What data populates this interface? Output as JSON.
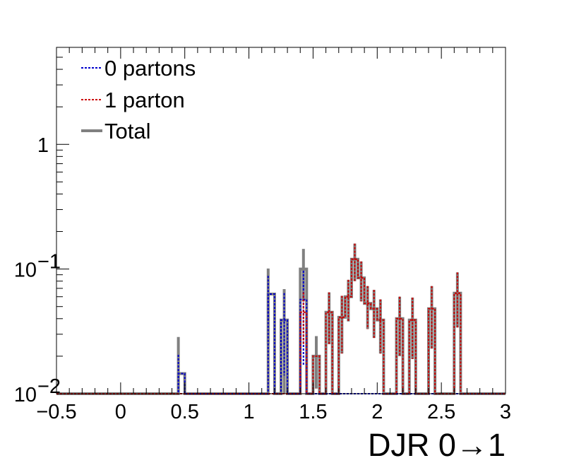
{
  "chart_data": {
    "type": "line",
    "title": "",
    "xlabel": "DJR 0→1",
    "ylabel": "",
    "x_range": [
      -0.5,
      3
    ],
    "y_scale": "log",
    "y_range": [
      0.01,
      6
    ],
    "bin_width": 0.05,
    "x_ticks": [
      "−0.5",
      "0",
      "0.5",
      "1",
      "1.5",
      "2",
      "2.5",
      "3"
    ],
    "x_tick_values": [
      -0.5,
      0,
      0.5,
      1,
      1.5,
      2,
      2.5,
      3
    ],
    "y_ticks": [
      {
        "value": 0.01,
        "base": "10",
        "exp": "−2"
      },
      {
        "value": 0.1,
        "base": "10",
        "exp": "−1"
      },
      {
        "value": 1,
        "base": "1",
        "exp": ""
      }
    ],
    "legend_position": "top-left",
    "series": [
      {
        "name": "0 partons",
        "color": "#0000cc",
        "style": "dotted",
        "bins": [
          {
            "x": 0.45,
            "y": 0.0145,
            "err": 0.006
          },
          {
            "x": 1.15,
            "y": 0.063,
            "err": 0.025
          },
          {
            "x": 1.275,
            "y": 0.039,
            "err": 0.025
          },
          {
            "x": 1.425,
            "y": 0.057,
            "err": 0.04
          }
        ]
      },
      {
        "name": "1 parton",
        "color": "#cc0000",
        "style": "dotted",
        "bins": [
          {
            "x": 1.425,
            "y": 0.045,
            "err": 0.02
          },
          {
            "x": 1.525,
            "y": 0.02,
            "err": 0.0
          },
          {
            "x": 1.625,
            "y": 0.045,
            "err": 0.02
          },
          {
            "x": 1.725,
            "y": 0.041,
            "err": 0.02
          },
          {
            "x": 1.775,
            "y": 0.06,
            "err": 0.022
          },
          {
            "x": 1.825,
            "y": 0.12,
            "err": 0.04
          },
          {
            "x": 1.875,
            "y": 0.085,
            "err": 0.03
          },
          {
            "x": 1.925,
            "y": 0.053,
            "err": 0.02
          },
          {
            "x": 1.975,
            "y": 0.048,
            "err": 0.02
          },
          {
            "x": 2.025,
            "y": 0.039,
            "err": 0.018
          },
          {
            "x": 2.175,
            "y": 0.04,
            "err": 0.02
          },
          {
            "x": 2.275,
            "y": 0.039,
            "err": 0.02
          },
          {
            "x": 2.425,
            "y": 0.048,
            "err": 0.025
          },
          {
            "x": 2.625,
            "y": 0.064,
            "err": 0.03
          }
        ]
      },
      {
        "name": "Total",
        "color": "#808080",
        "style": "solid",
        "bins": [
          {
            "x": 0.45,
            "y": 0.0145,
            "err": 0.014
          },
          {
            "x": 1.15,
            "y": 0.063,
            "err": 0.038
          },
          {
            "x": 1.275,
            "y": 0.039,
            "err": 0.03
          },
          {
            "x": 1.425,
            "y": 0.1,
            "err": 0.045
          },
          {
            "x": 1.525,
            "y": 0.02,
            "err": 0.009
          },
          {
            "x": 1.625,
            "y": 0.045,
            "err": 0.02
          },
          {
            "x": 1.725,
            "y": 0.041,
            "err": 0.02
          },
          {
            "x": 1.775,
            "y": 0.06,
            "err": 0.022
          },
          {
            "x": 1.825,
            "y": 0.12,
            "err": 0.04
          },
          {
            "x": 1.875,
            "y": 0.085,
            "err": 0.03
          },
          {
            "x": 1.925,
            "y": 0.053,
            "err": 0.02
          },
          {
            "x": 1.975,
            "y": 0.048,
            "err": 0.02
          },
          {
            "x": 2.025,
            "y": 0.039,
            "err": 0.018
          },
          {
            "x": 2.175,
            "y": 0.04,
            "err": 0.02
          },
          {
            "x": 2.275,
            "y": 0.039,
            "err": 0.02
          },
          {
            "x": 2.425,
            "y": 0.048,
            "err": 0.025
          },
          {
            "x": 2.625,
            "y": 0.064,
            "err": 0.03
          }
        ]
      }
    ]
  }
}
